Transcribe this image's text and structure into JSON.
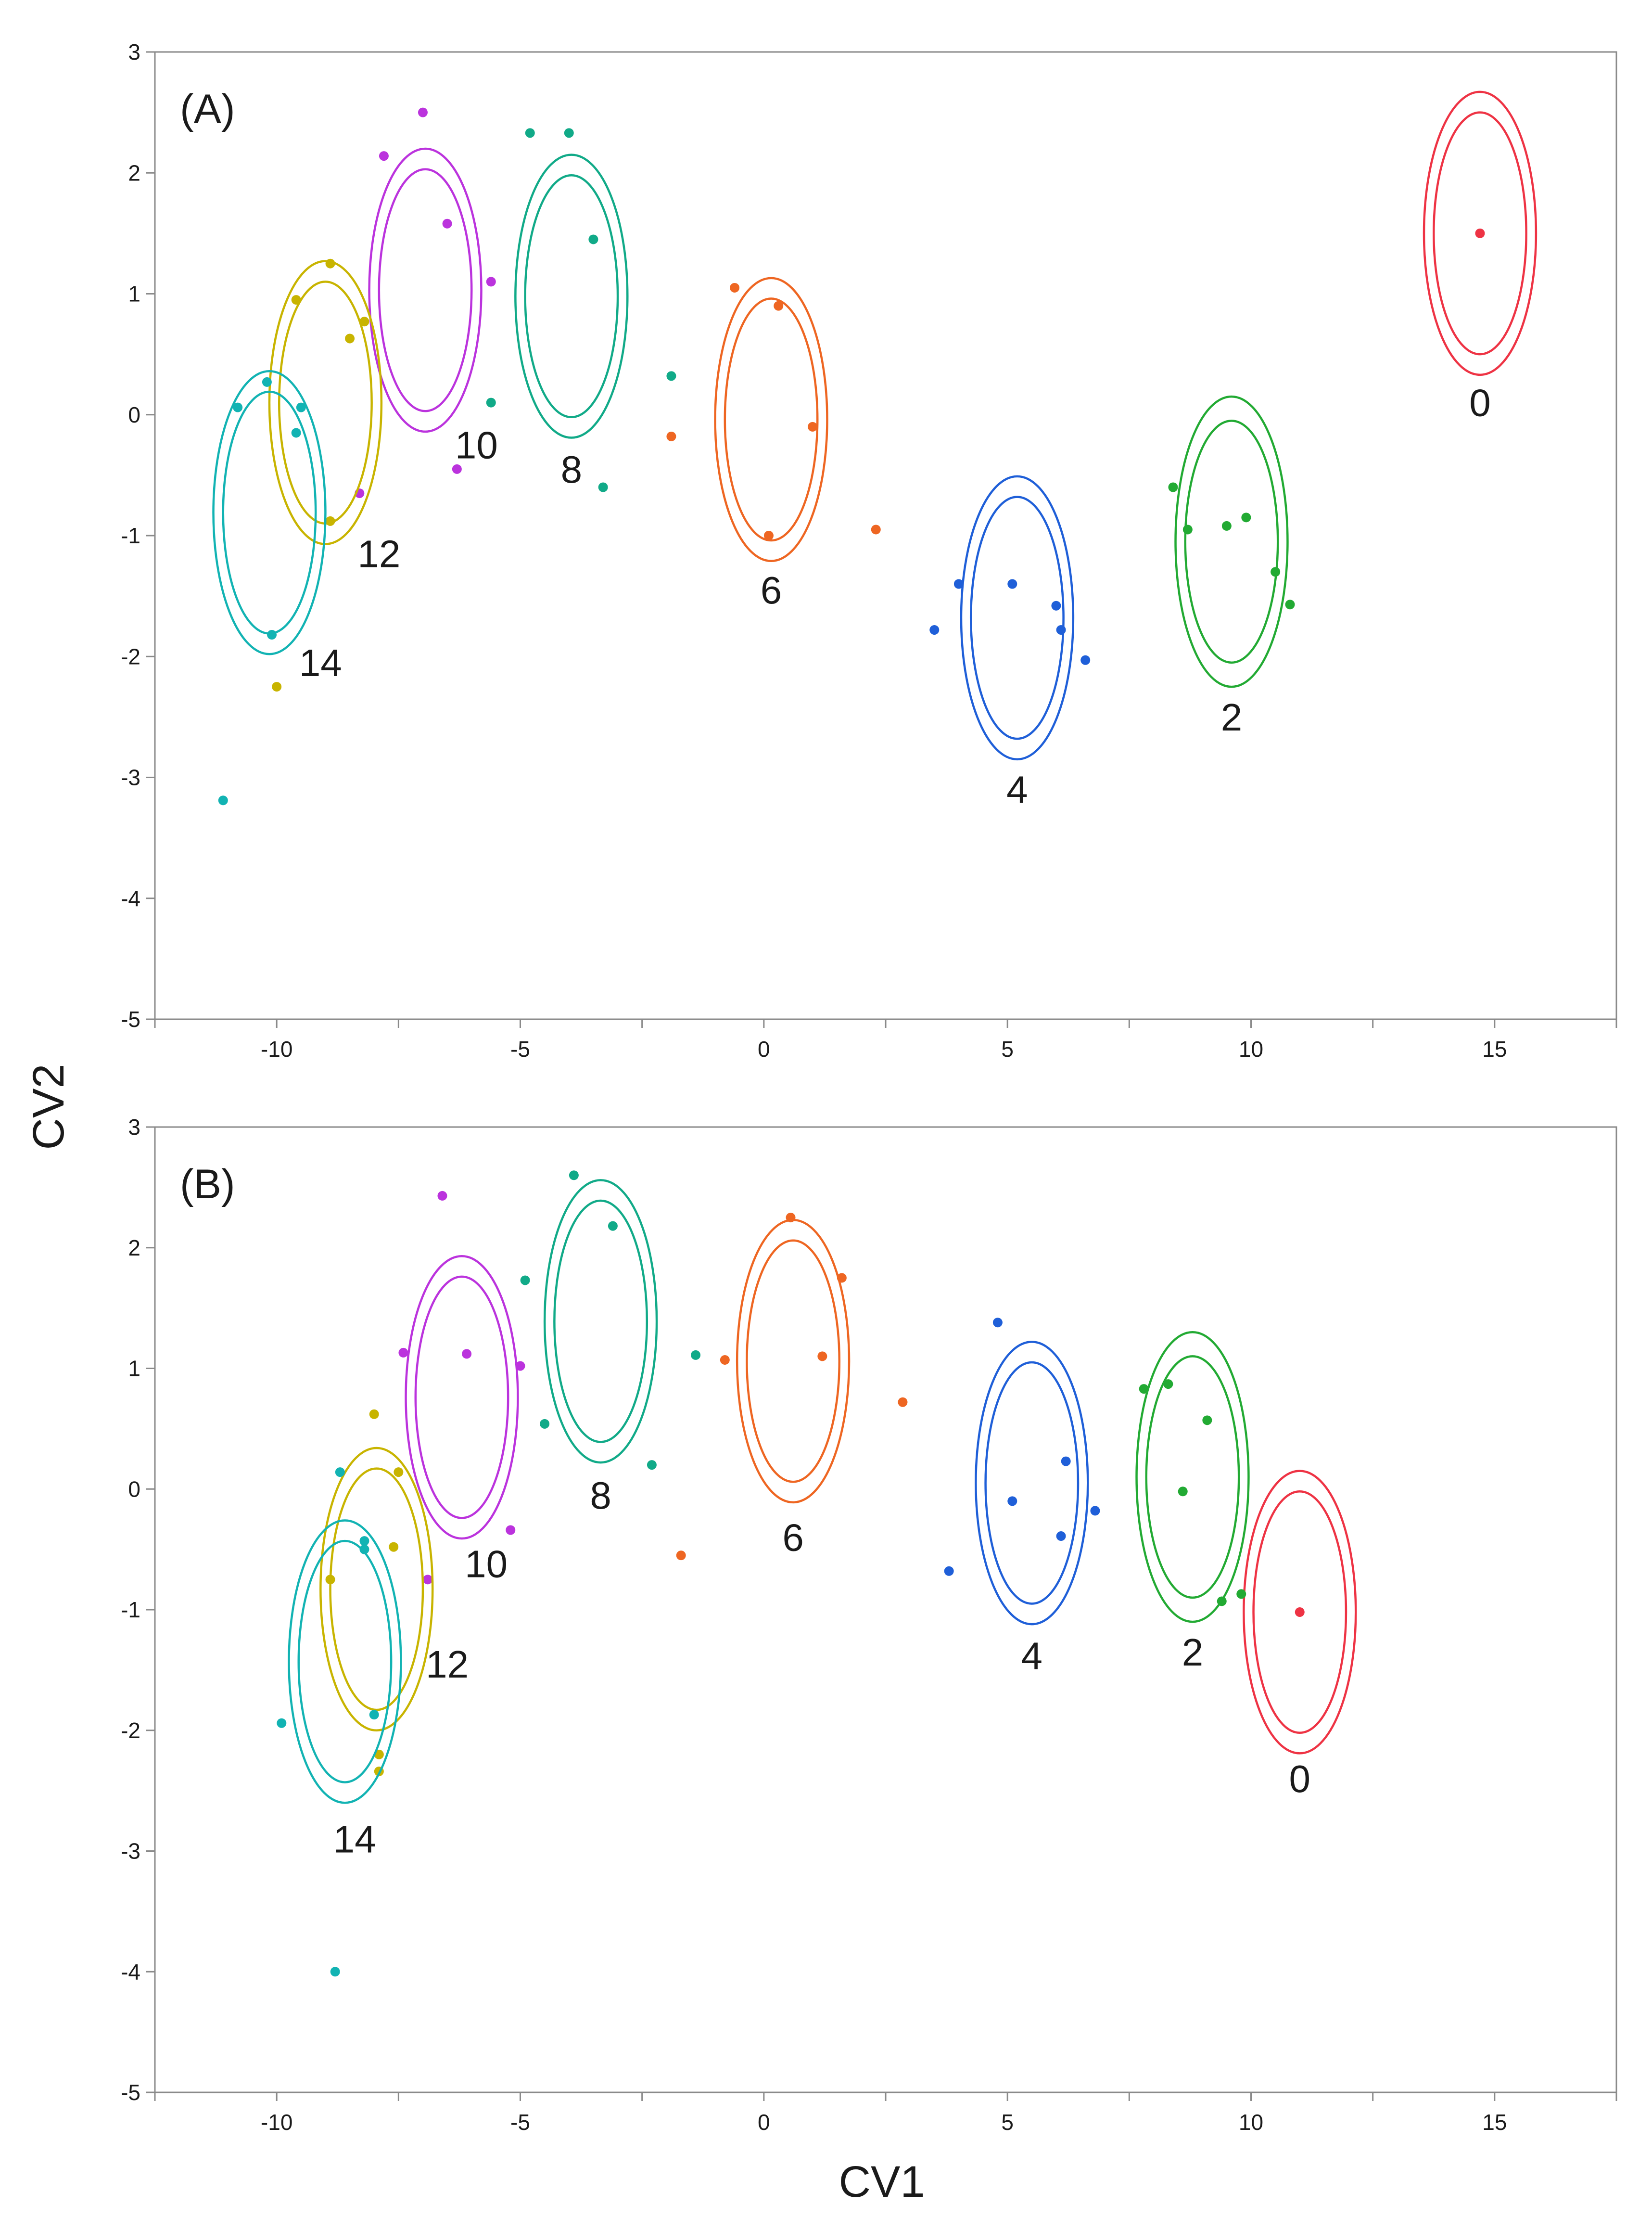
{
  "figure": {
    "ylabel": "CV2",
    "xlabel": "CV1"
  },
  "chart_data": [
    {
      "type": "scatter",
      "panel_label": "(A)",
      "xlim": [
        -12.5,
        17.5
      ],
      "ylim": [
        -5,
        3
      ],
      "xticks": [
        -10,
        -5,
        0,
        5,
        10,
        15
      ],
      "yticks": [
        3,
        2,
        1,
        0,
        -1,
        -2,
        -3,
        -4,
        -5
      ],
      "grid": false,
      "series": [
        {
          "name": "0",
          "color": "#ee3344",
          "points": [
            [
              14.7,
              1.5
            ]
          ],
          "ellipse": {
            "cx": 14.7,
            "cy": 1.5,
            "rx_inner": 0.95,
            "ry_inner": 1.0,
            "rx_outer": 1.15,
            "ry_outer": 1.17
          },
          "label": {
            "x": 14.7,
            "y": 0.1
          }
        },
        {
          "name": "2",
          "color": "#22aa33",
          "points": [
            [
              8.4,
              -0.6
            ],
            [
              8.7,
              -0.95
            ],
            [
              9.5,
              -0.92
            ],
            [
              9.9,
              -0.85
            ],
            [
              10.5,
              -1.3
            ],
            [
              10.8,
              -1.57
            ]
          ],
          "ellipse": {
            "cx": 9.6,
            "cy": -1.05,
            "rx_inner": 0.95,
            "ry_inner": 1.0,
            "rx_outer": 1.15,
            "ry_outer": 1.2
          },
          "label": {
            "x": 9.6,
            "y": -2.5
          }
        },
        {
          "name": "4",
          "color": "#1f5fd8",
          "points": [
            [
              3.5,
              -1.78
            ],
            [
              4.0,
              -1.4
            ],
            [
              5.1,
              -1.4
            ],
            [
              6.0,
              -1.58
            ],
            [
              6.1,
              -1.78
            ],
            [
              6.6,
              -2.03
            ]
          ],
          "ellipse": {
            "cx": 5.2,
            "cy": -1.68,
            "rx_inner": 0.95,
            "ry_inner": 1.0,
            "rx_outer": 1.15,
            "ry_outer": 1.17
          },
          "label": {
            "x": 5.2,
            "y": -3.1
          }
        },
        {
          "name": "6",
          "color": "#ee6622",
          "points": [
            [
              -0.6,
              1.05
            ],
            [
              0.3,
              0.9
            ],
            [
              1.0,
              -0.1
            ],
            [
              0.1,
              -1.0
            ],
            [
              2.3,
              -0.95
            ],
            [
              -1.9,
              -0.18
            ]
          ],
          "ellipse": {
            "cx": 0.15,
            "cy": -0.04,
            "rx_inner": 0.95,
            "ry_inner": 1.0,
            "rx_outer": 1.15,
            "ry_outer": 1.17
          },
          "label": {
            "x": 0.15,
            "y": -1.45
          }
        },
        {
          "name": "8",
          "color": "#11aa88",
          "points": [
            [
              -4.8,
              2.33
            ],
            [
              -4.0,
              2.33
            ],
            [
              -3.5,
              1.45
            ],
            [
              -5.6,
              0.1
            ],
            [
              -3.3,
              -0.6
            ],
            [
              -1.9,
              0.32
            ]
          ],
          "ellipse": {
            "cx": -3.95,
            "cy": 0.98,
            "rx_inner": 0.95,
            "ry_inner": 1.0,
            "rx_outer": 1.15,
            "ry_outer": 1.17
          },
          "label": {
            "x": -3.95,
            "y": -0.45
          }
        },
        {
          "name": "10",
          "color": "#bb33dd",
          "points": [
            [
              -7.0,
              2.5
            ],
            [
              -7.8,
              2.14
            ],
            [
              -6.5,
              1.58
            ],
            [
              -5.6,
              1.1
            ],
            [
              -6.3,
              -0.45
            ],
            [
              -8.3,
              -0.65
            ]
          ],
          "ellipse": {
            "cx": -6.95,
            "cy": 1.03,
            "rx_inner": 0.95,
            "ry_inner": 1.0,
            "rx_outer": 1.15,
            "ry_outer": 1.17
          },
          "label": {
            "x": -5.9,
            "y": -0.25
          }
        },
        {
          "name": "12",
          "color": "#c8b400",
          "points": [
            [
              -8.9,
              1.25
            ],
            [
              -9.6,
              0.95
            ],
            [
              -8.2,
              0.77
            ],
            [
              -8.5,
              0.63
            ],
            [
              -8.9,
              -0.88
            ],
            [
              -10.0,
              -2.25
            ]
          ],
          "ellipse": {
            "cx": -9.0,
            "cy": 0.1,
            "rx_inner": 0.95,
            "ry_inner": 1.0,
            "rx_outer": 1.15,
            "ry_outer": 1.17
          },
          "label": {
            "x": -7.9,
            "y": -1.15
          }
        },
        {
          "name": "14",
          "color": "#12b3b3",
          "points": [
            [
              -10.2,
              0.27
            ],
            [
              -10.8,
              0.06
            ],
            [
              -9.5,
              0.06
            ],
            [
              -9.6,
              -0.15
            ],
            [
              -10.1,
              -1.82
            ],
            [
              -11.1,
              -3.19
            ]
          ],
          "ellipse": {
            "cx": -10.15,
            "cy": -0.81,
            "rx_inner": 0.95,
            "ry_inner": 1.0,
            "rx_outer": 1.15,
            "ry_outer": 1.17
          },
          "label": {
            "x": -9.1,
            "y": -2.05
          }
        }
      ]
    },
    {
      "type": "scatter",
      "panel_label": "(B)",
      "xlim": [
        -12.5,
        17.5
      ],
      "ylim": [
        -5,
        3
      ],
      "xticks": [
        -10,
        -5,
        0,
        5,
        10,
        15
      ],
      "yticks": [
        3,
        2,
        1,
        0,
        -1,
        -2,
        -3,
        -4,
        -5
      ],
      "grid": false,
      "series": [
        {
          "name": "0",
          "color": "#ee3344",
          "points": [
            [
              11.0,
              -1.02
            ]
          ],
          "ellipse": {
            "cx": 11.0,
            "cy": -1.02,
            "rx_inner": 0.95,
            "ry_inner": 1.0,
            "rx_outer": 1.15,
            "ry_outer": 1.17
          },
          "label": {
            "x": 11.0,
            "y": -2.4
          }
        },
        {
          "name": "2",
          "color": "#22aa33",
          "points": [
            [
              7.8,
              0.83
            ],
            [
              8.3,
              0.87
            ],
            [
              9.1,
              0.57
            ],
            [
              8.6,
              -0.02
            ],
            [
              9.4,
              -0.93
            ],
            [
              9.8,
              -0.87
            ]
          ],
          "ellipse": {
            "cx": 8.8,
            "cy": 0.1,
            "rx_inner": 0.95,
            "ry_inner": 1.0,
            "rx_outer": 1.15,
            "ry_outer": 1.2
          },
          "label": {
            "x": 8.8,
            "y": -1.35
          }
        },
        {
          "name": "4",
          "color": "#1f5fd8",
          "points": [
            [
              4.8,
              1.38
            ],
            [
              6.2,
              0.23
            ],
            [
              5.1,
              -0.1
            ],
            [
              6.1,
              -0.39
            ],
            [
              6.8,
              -0.18
            ],
            [
              3.8,
              -0.68
            ]
          ],
          "ellipse": {
            "cx": 5.5,
            "cy": 0.05,
            "rx_inner": 0.95,
            "ry_inner": 1.0,
            "rx_outer": 1.15,
            "ry_outer": 1.17
          },
          "label": {
            "x": 5.5,
            "y": -1.38
          }
        },
        {
          "name": "6",
          "color": "#ee6622",
          "points": [
            [
              0.55,
              2.25
            ],
            [
              1.6,
              1.75
            ],
            [
              1.2,
              1.1
            ],
            [
              -0.8,
              1.07
            ],
            [
              2.85,
              0.72
            ],
            [
              -1.7,
              -0.55
            ]
          ],
          "ellipse": {
            "cx": 0.6,
            "cy": 1.06,
            "rx_inner": 0.95,
            "ry_inner": 1.0,
            "rx_outer": 1.15,
            "ry_outer": 1.17
          },
          "label": {
            "x": 0.6,
            "y": -0.4
          }
        },
        {
          "name": "8",
          "color": "#11aa88",
          "points": [
            [
              -3.9,
              2.6
            ],
            [
              -3.1,
              2.18
            ],
            [
              -4.9,
              1.73
            ],
            [
              -1.4,
              1.11
            ],
            [
              -4.5,
              0.54
            ],
            [
              -2.3,
              0.2
            ]
          ],
          "ellipse": {
            "cx": -3.35,
            "cy": 1.39,
            "rx_inner": 0.95,
            "ry_inner": 1.0,
            "rx_outer": 1.15,
            "ry_outer": 1.17
          },
          "label": {
            "x": -3.35,
            "y": -0.05
          }
        },
        {
          "name": "10",
          "color": "#bb33dd",
          "points": [
            [
              -6.6,
              2.43
            ],
            [
              -7.4,
              1.13
            ],
            [
              -6.1,
              1.12
            ],
            [
              -5.0,
              1.02
            ],
            [
              -5.2,
              -0.34
            ],
            [
              -6.9,
              -0.75
            ]
          ],
          "ellipse": {
            "cx": -6.2,
            "cy": 0.76,
            "rx_inner": 0.95,
            "ry_inner": 1.0,
            "rx_outer": 1.15,
            "ry_outer": 1.17
          },
          "label": {
            "x": -5.7,
            "y": -0.62
          }
        },
        {
          "name": "12",
          "color": "#c8b400",
          "points": [
            [
              -8.0,
              0.62
            ],
            [
              -7.5,
              0.14
            ],
            [
              -7.6,
              -0.48
            ],
            [
              -8.9,
              -0.75
            ],
            [
              -7.9,
              -2.2
            ],
            [
              -7.9,
              -2.34
            ]
          ],
          "ellipse": {
            "cx": -7.95,
            "cy": -0.83,
            "rx_inner": 0.95,
            "ry_inner": 1.0,
            "rx_outer": 1.15,
            "ry_outer": 1.17
          },
          "label": {
            "x": -6.5,
            "y": -1.45
          }
        },
        {
          "name": "14",
          "color": "#12b3b3",
          "points": [
            [
              -8.7,
              0.14
            ],
            [
              -8.2,
              -0.43
            ],
            [
              -8.2,
              -0.5
            ],
            [
              -8.0,
              -1.87
            ],
            [
              -9.9,
              -1.94
            ],
            [
              -8.8,
              -4.0
            ]
          ],
          "ellipse": {
            "cx": -8.6,
            "cy": -1.43,
            "rx_inner": 0.95,
            "ry_inner": 1.0,
            "rx_outer": 1.15,
            "ry_outer": 1.17
          },
          "label": {
            "x": -8.4,
            "y": -2.9
          }
        }
      ]
    }
  ]
}
